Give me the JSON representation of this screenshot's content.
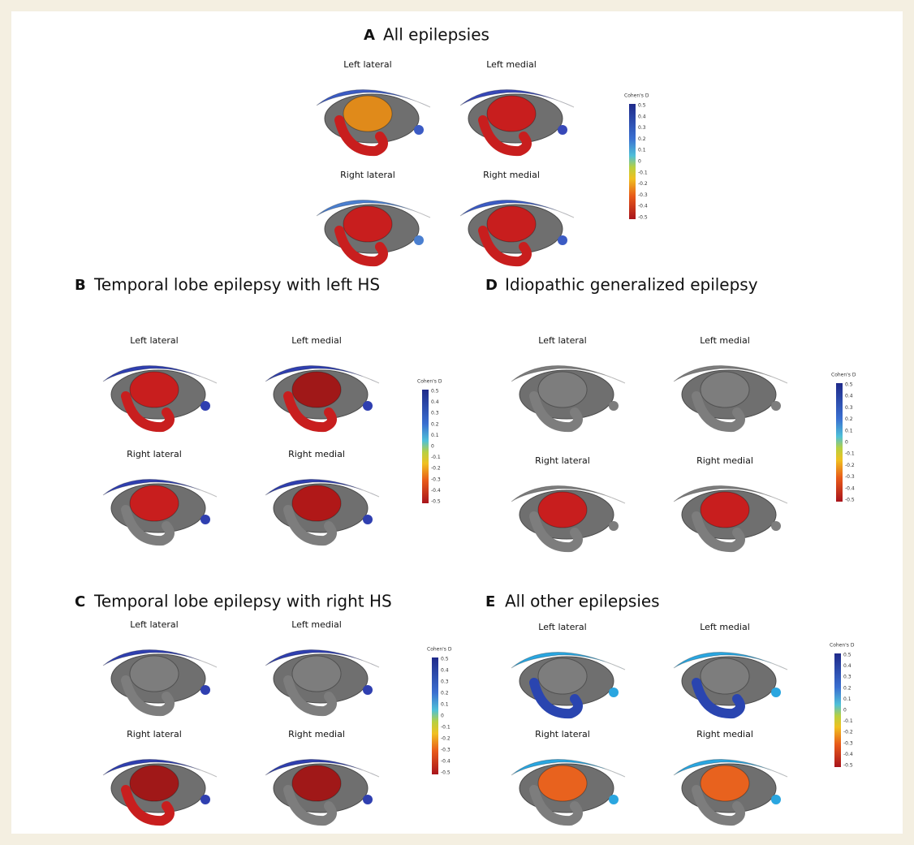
{
  "panels": [
    {
      "letter": "A",
      "title": "All epilepsies",
      "views": [
        "Left lateral",
        "Left medial",
        "Right lateral",
        "Right medial"
      ],
      "colorbar": {
        "label": "Cohen's D",
        "ticks": [
          0.5,
          0.4,
          0.3,
          0.2,
          0.1,
          0,
          -0.1,
          -0.2,
          -0.3,
          -0.4,
          -0.5
        ]
      }
    },
    {
      "letter": "B",
      "title": "Temporal lobe epilepsy with left HS",
      "views": [
        "Left lateral",
        "Left medial",
        "Right lateral",
        "Right medial"
      ],
      "colorbar": {
        "label": "Cohen's D",
        "ticks": [
          0.5,
          0.4,
          0.3,
          0.2,
          0.1,
          0,
          -0.1,
          -0.2,
          -0.3,
          -0.4,
          -0.5
        ]
      }
    },
    {
      "letter": "D",
      "title": "Idiopathic generalized epilepsy",
      "views": [
        "Left lateral",
        "Left medial",
        "Right lateral",
        "Right medial"
      ],
      "colorbar": {
        "label": "Cohen's D",
        "ticks": [
          0.5,
          0.4,
          0.3,
          0.2,
          0.1,
          0,
          -0.1,
          -0.2,
          -0.3,
          -0.4,
          -0.5
        ]
      }
    },
    {
      "letter": "C",
      "title": "Temporal lobe epilepsy with right HS",
      "views": [
        "Left lateral",
        "Left medial",
        "Right lateral",
        "Right medial"
      ],
      "colorbar": {
        "label": "Cohen's D",
        "ticks": [
          0.5,
          0.4,
          0.3,
          0.2,
          0.1,
          0,
          -0.1,
          -0.2,
          -0.3,
          -0.4,
          -0.5
        ]
      }
    },
    {
      "letter": "E",
      "title": "All other epilepsies",
      "views": [
        "Left lateral",
        "Left medial",
        "Right lateral",
        "Right medial"
      ],
      "colorbar": {
        "label": "Cohen's D",
        "ticks": [
          0.5,
          0.4,
          0.3,
          0.2,
          0.1,
          0,
          -0.1,
          -0.2,
          -0.3,
          -0.4,
          -0.5
        ]
      }
    }
  ]
}
